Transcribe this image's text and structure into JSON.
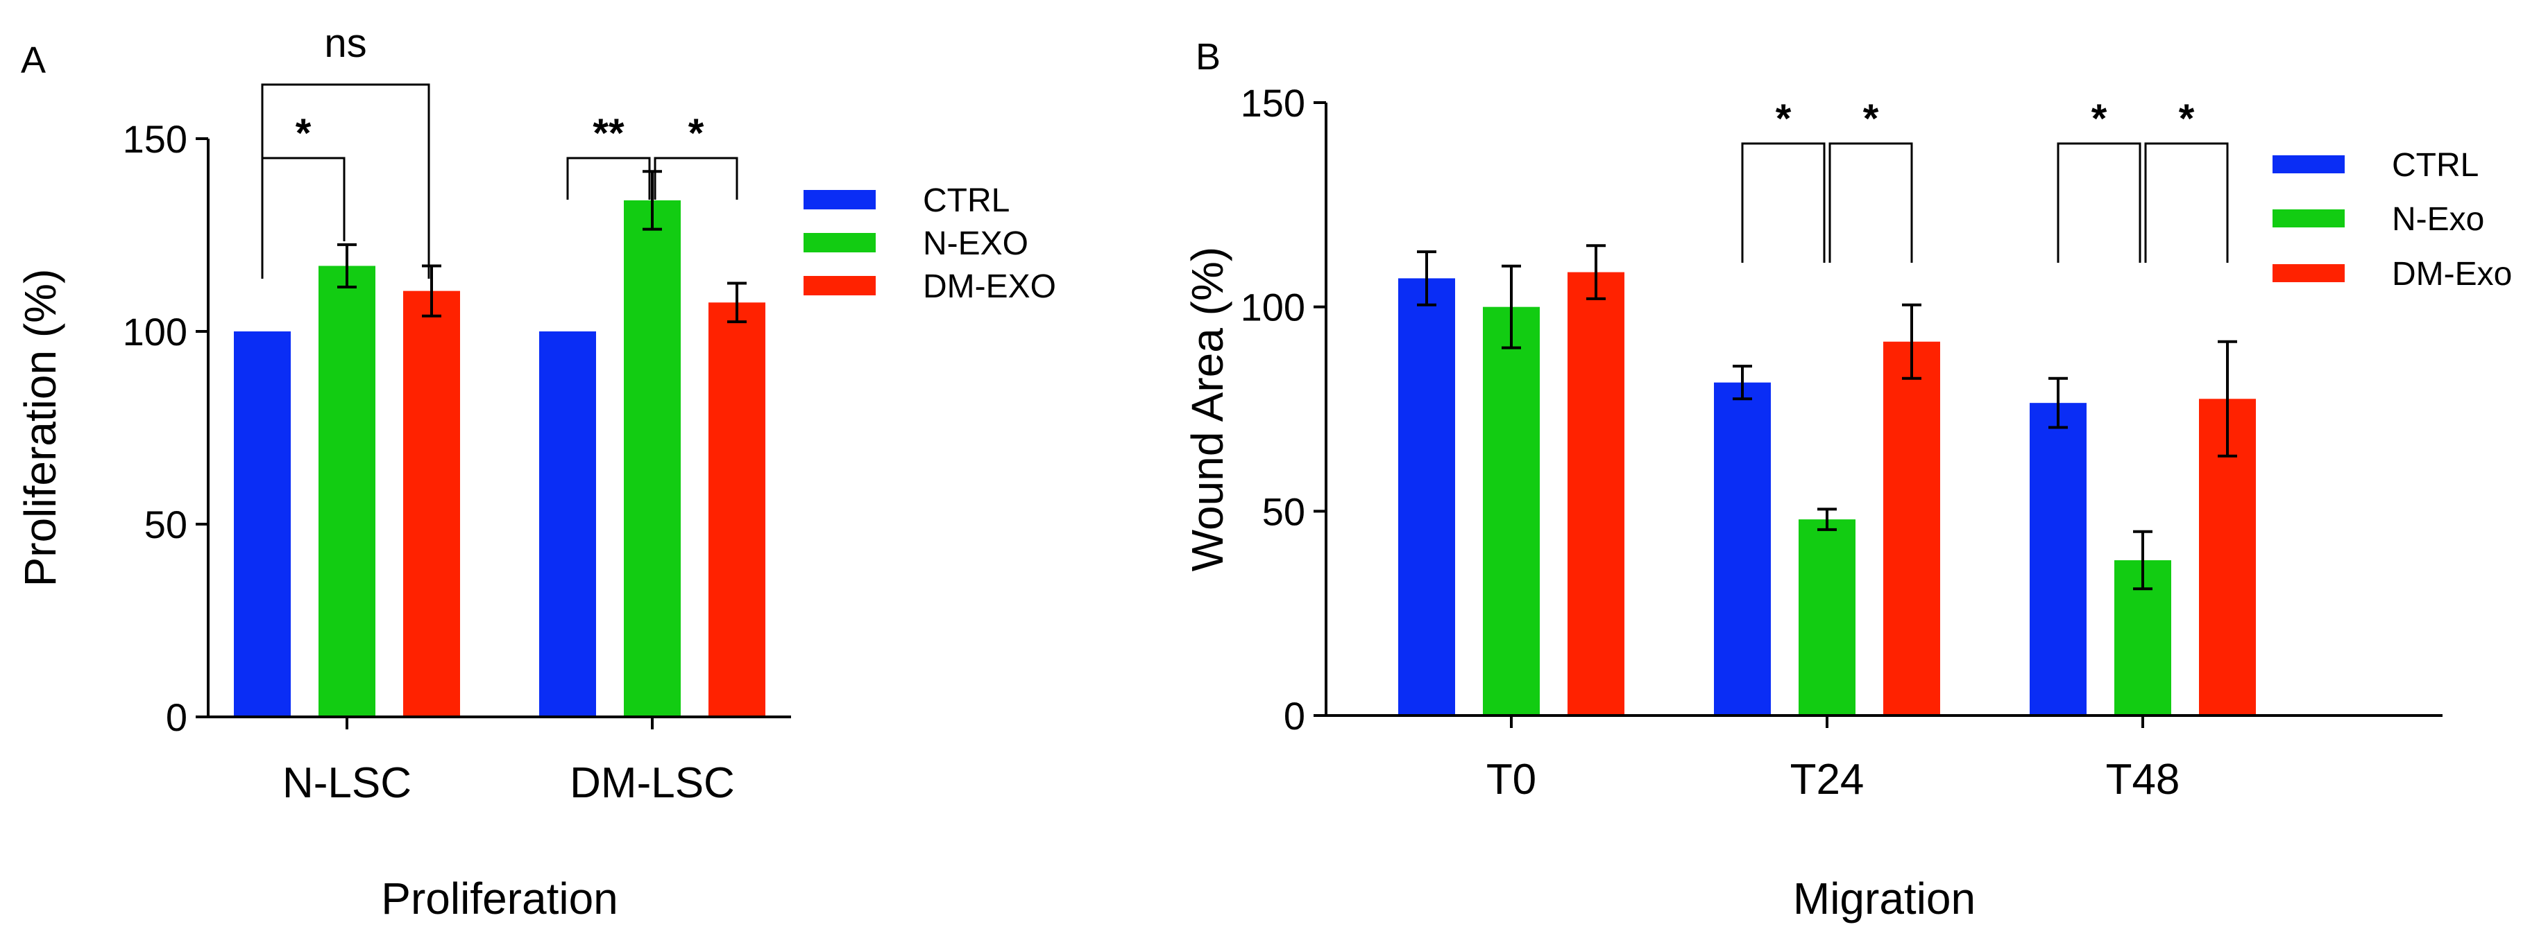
{
  "chart_data": [
    {
      "panel": "A",
      "type": "bar",
      "categories": [
        "N-LSC",
        "DM-LSC"
      ],
      "series": [
        {
          "name": "CTRL",
          "color": "#0a2df5",
          "values": [
            100,
            100
          ],
          "errors": [
            0,
            0
          ]
        },
        {
          "name": "N-EXO",
          "color": "#12cc12",
          "values": [
            117,
            134
          ],
          "errors": [
            5.5,
            7.5
          ]
        },
        {
          "name": "DM-EXO",
          "color": "#ff2200",
          "values": [
            110.5,
            107.5
          ],
          "errors": [
            6.5,
            5
          ]
        }
      ],
      "ylabel": "Proliferation (%)",
      "xlabel": "Proliferation",
      "ylim": [
        0,
        150
      ],
      "yticks": [
        0,
        50,
        100,
        150
      ],
      "legend": "right",
      "significance": [
        {
          "label": "ns",
          "category": 0,
          "from": 0,
          "to": 2,
          "tier": 2
        },
        {
          "label": "*",
          "category": 0,
          "from": 0,
          "to": 1,
          "tier": 1
        },
        {
          "label": "**",
          "category": 1,
          "from": 0,
          "to": 1,
          "tier": 1
        },
        {
          "label": "*",
          "category": 1,
          "from": 1,
          "to": 2,
          "tier": 1
        }
      ]
    },
    {
      "panel": "B",
      "type": "bar",
      "categories": [
        "T0",
        "T24",
        "T48"
      ],
      "series": [
        {
          "name": "CTRL",
          "color": "#0a2df5",
          "values": [
            107,
            81.5,
            76.5
          ],
          "errors": [
            6.5,
            4,
            6
          ]
        },
        {
          "name": "N-Exo",
          "color": "#12cc12",
          "values": [
            100,
            48,
            38
          ],
          "errors": [
            10,
            2.5,
            7
          ]
        },
        {
          "name": "DM-Exo",
          "color": "#ff2200",
          "values": [
            108.5,
            91.5,
            77.5
          ],
          "errors": [
            6.5,
            9,
            14
          ]
        }
      ],
      "ylabel": "Wound Area (%)",
      "xlabel": "Migration",
      "ylim": [
        0,
        150
      ],
      "yticks": [
        0,
        50,
        100,
        150
      ],
      "legend": "right",
      "significance": [
        {
          "label": "*",
          "category": 1,
          "from": 0,
          "to": 1,
          "tier": 1
        },
        {
          "label": "*",
          "category": 1,
          "from": 1,
          "to": 2,
          "tier": 1
        },
        {
          "label": "*",
          "category": 2,
          "from": 0,
          "to": 1,
          "tier": 1
        },
        {
          "label": "*",
          "category": 2,
          "from": 1,
          "to": 2,
          "tier": 1
        }
      ]
    }
  ]
}
